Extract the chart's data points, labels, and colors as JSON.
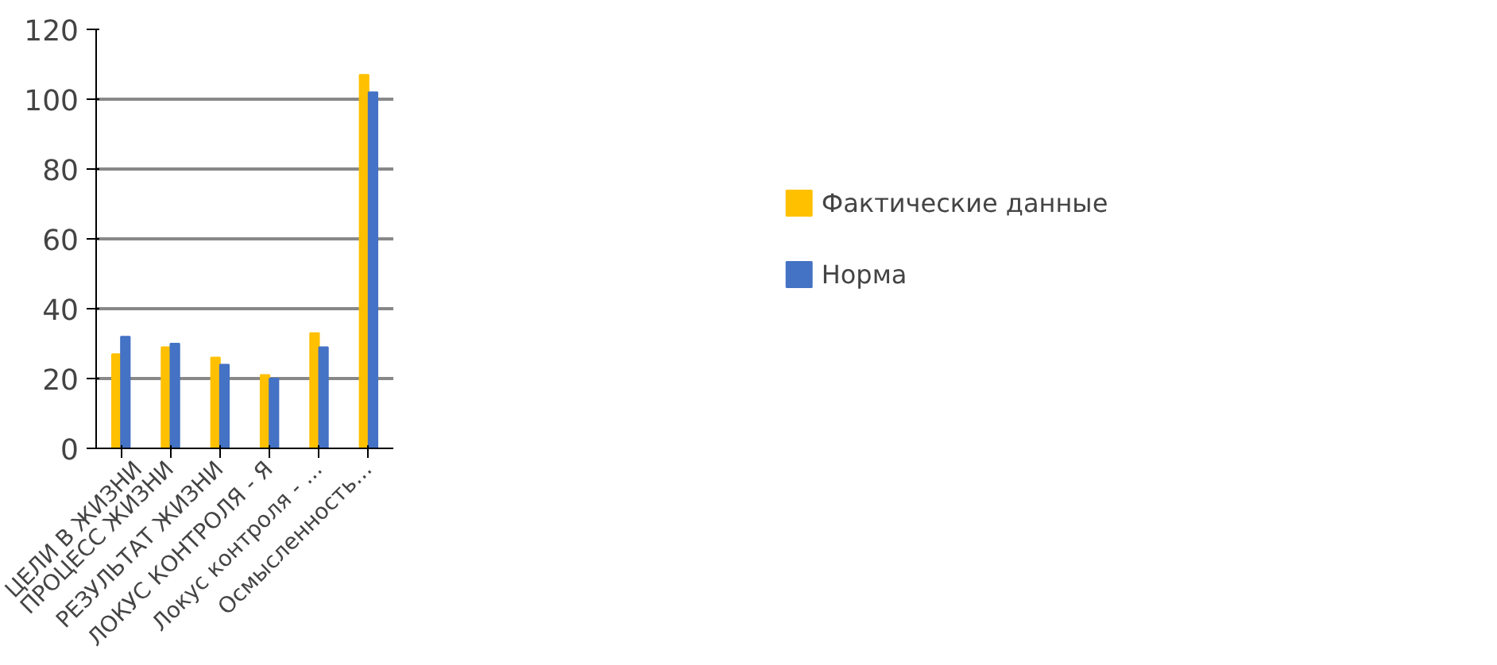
{
  "chart_data": {
    "type": "bar",
    "categories": [
      "ЦЕЛИ В ЖИЗНИ",
      "ПРОЦЕСС ЖИЗНИ",
      "РЕЗУЛЬТАТ ЖИЗНИ",
      "ЛОКУС КОНТРОЛЯ - Я",
      "Локус контроля - ...",
      "Осмысленность..."
    ],
    "series": [
      {
        "name": "Фактические данные",
        "color": "#ffc000",
        "values": [
          27,
          29,
          26,
          21,
          33,
          107
        ]
      },
      {
        "name": "Норма",
        "color": "#4472c4",
        "values": [
          32,
          30,
          24,
          20,
          29,
          102
        ]
      }
    ],
    "ylim": [
      0,
      120
    ],
    "yticks": [
      0,
      20,
      40,
      60,
      80,
      100,
      120
    ],
    "grid": "y",
    "legend": "right"
  }
}
